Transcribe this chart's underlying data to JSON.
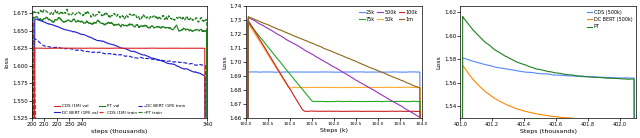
{
  "panel1": {
    "xlabel": "steps (thousands)",
    "ylabel": "loss",
    "xlim": [
      200,
      340
    ],
    "ylim": [
      1.525,
      1.685
    ],
    "yticks": [
      1.525,
      1.55,
      1.575,
      1.6,
      1.625,
      1.65,
      1.675
    ],
    "xticks": [
      200,
      210,
      220,
      230,
      240,
      340
    ],
    "colors": {
      "cds": "#e02020",
      "dcbert": "#2020d0",
      "pt": "#208020"
    }
  },
  "panel2": {
    "xlabel": "Steps (k)",
    "ylabel": "Loss",
    "xlim": [
      100.0,
      104.0
    ],
    "ylim": [
      1.66,
      1.74
    ],
    "yticks": [
      1.66,
      1.67,
      1.68,
      1.69,
      1.7,
      1.71,
      1.72,
      1.73,
      1.74
    ],
    "colors": {
      "25k": "#5588ff",
      "50k": "#ffaa30",
      "75k": "#22aa22",
      "100k": "#cc2222",
      "500k": "#9933bb",
      "1m": "#8B6914"
    }
  },
  "panel3": {
    "xlabel": "Steps (thousands)",
    "ylabel": "Loss",
    "xlim": [
      401.0,
      402.1
    ],
    "ylim": [
      1.53,
      1.625
    ],
    "yticks": [
      1.54,
      1.56,
      1.58,
      1.6,
      1.62
    ],
    "colors": {
      "cds": "#5588ff",
      "dcbert": "#ff8800",
      "pt": "#208020"
    }
  }
}
